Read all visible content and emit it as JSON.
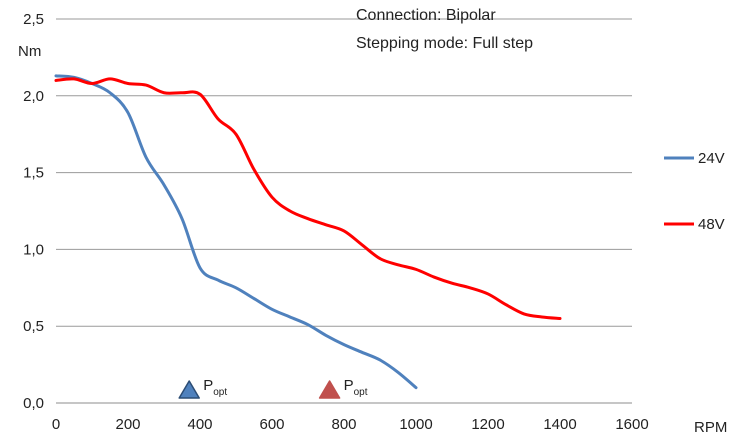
{
  "chart_data": {
    "type": "line",
    "title": "",
    "annotations": [
      "Connection: Bipolar",
      "Stepping mode: Full step"
    ],
    "xlabel": "RPM",
    "ylabel": "Nm",
    "xlim": [
      0,
      1600
    ],
    "ylim": [
      0,
      2.5
    ],
    "x_ticks": [
      "0",
      "200",
      "400",
      "600",
      "800",
      "1000",
      "1200",
      "1400",
      "1600"
    ],
    "y_ticks": [
      "0,0",
      "0,5",
      "1,0",
      "1,5",
      "2,0",
      "2,5"
    ],
    "grid": "horizontal",
    "legend_position": "right",
    "series": [
      {
        "name": "24V",
        "color": "#4f81bd",
        "x": [
          0,
          50,
          100,
          150,
          200,
          250,
          300,
          350,
          400,
          450,
          500,
          550,
          600,
          650,
          700,
          750,
          800,
          850,
          900,
          950,
          1000
        ],
        "y": [
          2.13,
          2.12,
          2.08,
          2.02,
          1.89,
          1.6,
          1.42,
          1.2,
          0.88,
          0.8,
          0.75,
          0.68,
          0.61,
          0.56,
          0.51,
          0.44,
          0.38,
          0.33,
          0.28,
          0.2,
          0.1
        ]
      },
      {
        "name": "48V",
        "color": "#ff0000",
        "x": [
          0,
          50,
          100,
          150,
          200,
          250,
          300,
          350,
          400,
          450,
          500,
          550,
          600,
          650,
          700,
          750,
          800,
          850,
          900,
          950,
          1000,
          1050,
          1100,
          1150,
          1200,
          1250,
          1300,
          1350,
          1400
        ],
        "y": [
          2.1,
          2.11,
          2.08,
          2.11,
          2.08,
          2.07,
          2.02,
          2.02,
          2.01,
          1.85,
          1.75,
          1.52,
          1.34,
          1.25,
          1.2,
          1.16,
          1.12,
          1.03,
          0.94,
          0.9,
          0.87,
          0.82,
          0.78,
          0.75,
          0.71,
          0.64,
          0.58,
          0.56,
          0.55
        ]
      }
    ],
    "markers": [
      {
        "x": 370,
        "label": "P",
        "sub": "opt",
        "color": "#4f81bd"
      },
      {
        "x": 760,
        "label": "P",
        "sub": "opt",
        "color": "#c0504d"
      }
    ]
  }
}
